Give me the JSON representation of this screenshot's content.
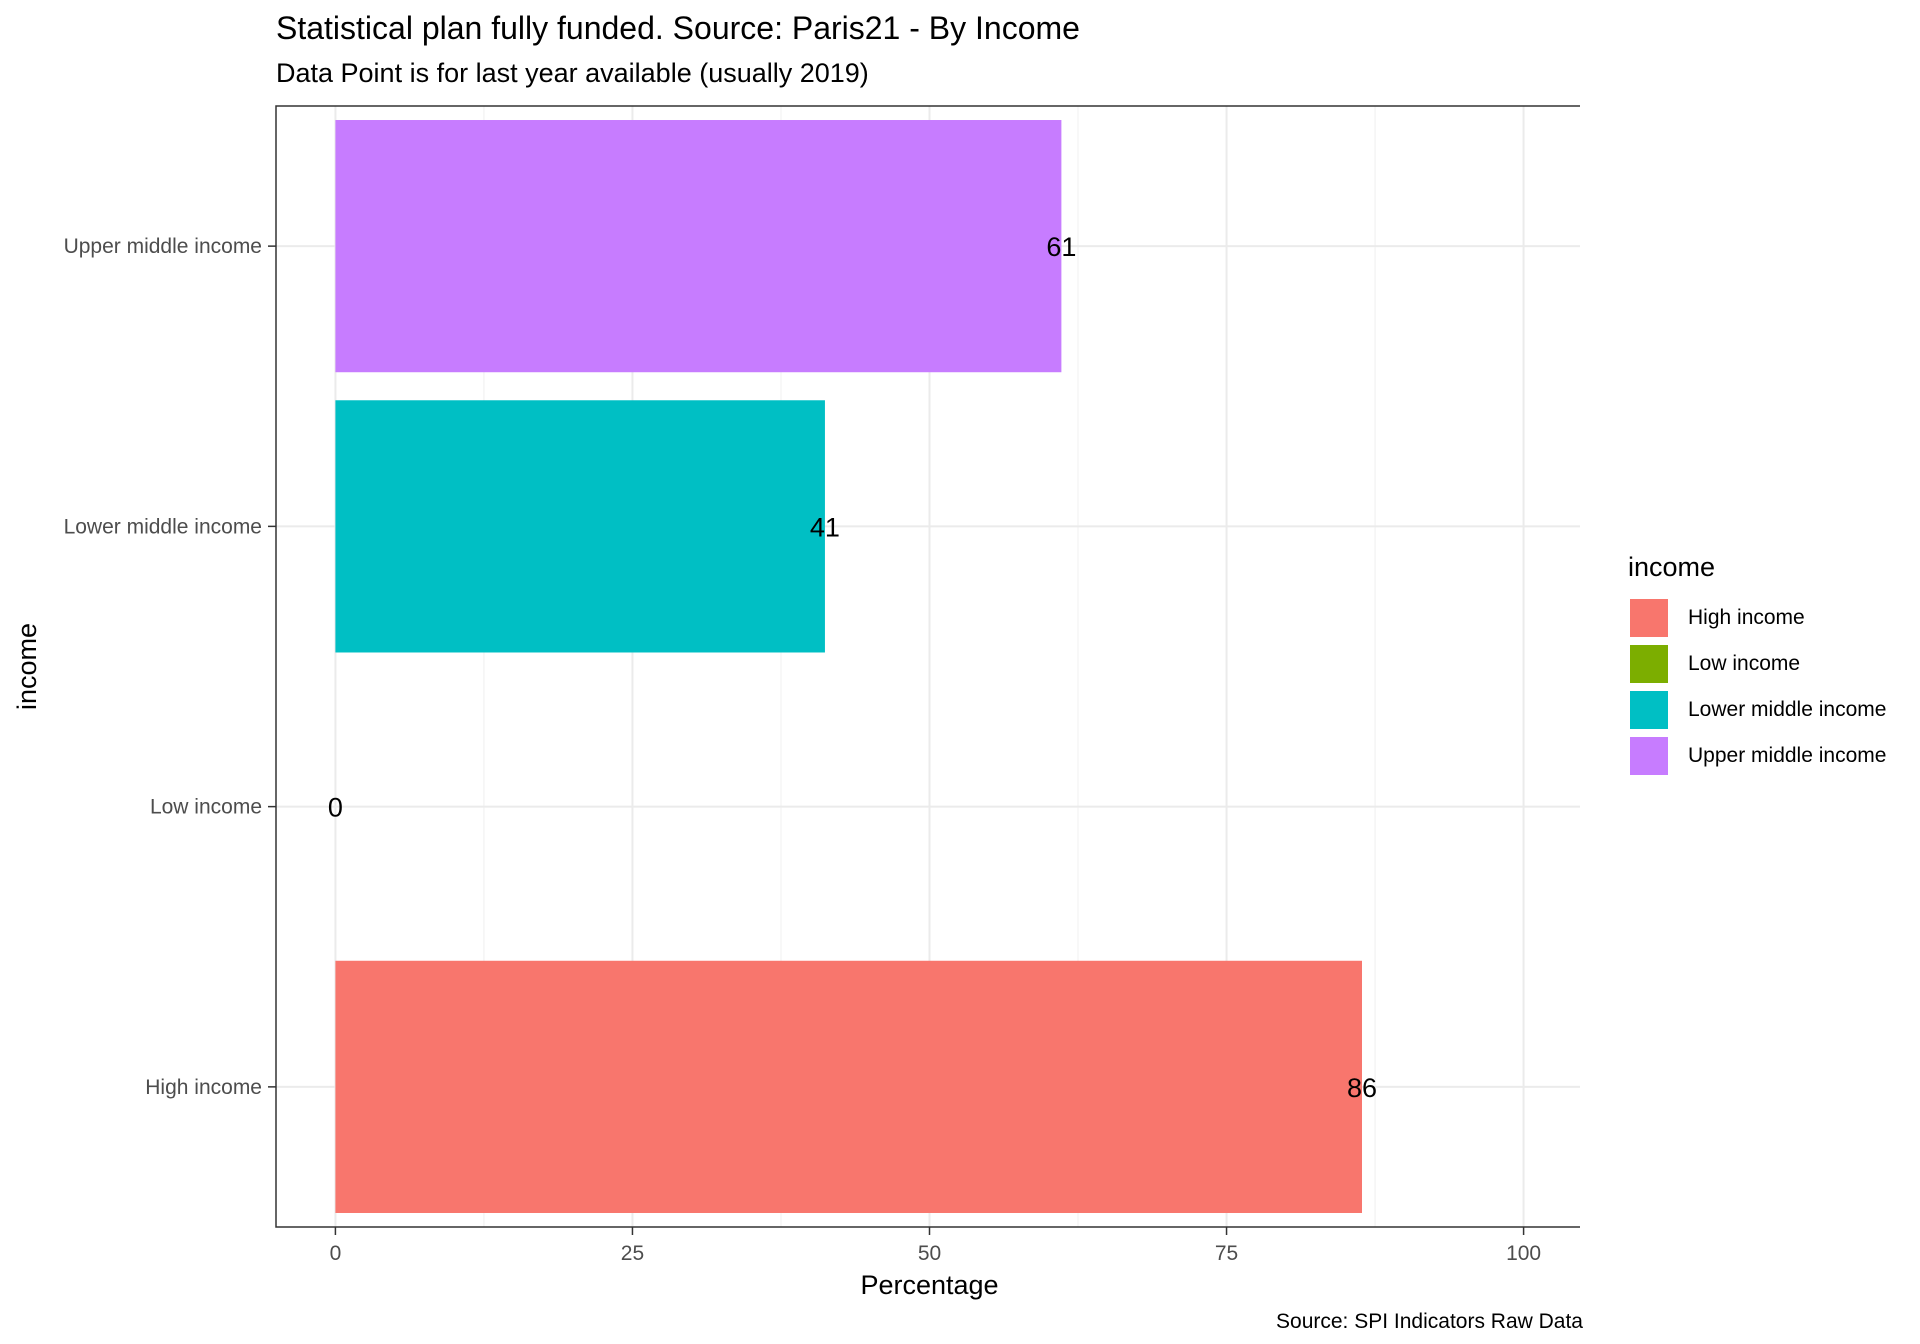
{
  "chart_data": {
    "type": "bar",
    "orientation": "horizontal",
    "title": "Statistical plan fully funded. Source: Paris21 - By Income",
    "subtitle": "Data Point is for last year available (usually 2019)",
    "caption": "Source: SPI Indicators Raw Data",
    "xlabel": "Percentage",
    "ylabel": "income",
    "xlim": [
      0,
      100
    ],
    "xticks": [
      0,
      25,
      50,
      75,
      100
    ],
    "categories": [
      "High income",
      "Low income",
      "Lower middle income",
      "Upper middle income"
    ],
    "values": [
      86.4,
      0,
      41.2,
      61.1
    ],
    "data_labels": [
      "86",
      "0",
      "41",
      "61"
    ],
    "colors": [
      "#F8766D",
      "#7CAE00",
      "#00BFC4",
      "#C77CFF"
    ],
    "grid": true,
    "legend": {
      "title": "income",
      "placement": "right",
      "items": [
        "High income",
        "Low income",
        "Lower middle income",
        "Upper middle income"
      ]
    }
  }
}
